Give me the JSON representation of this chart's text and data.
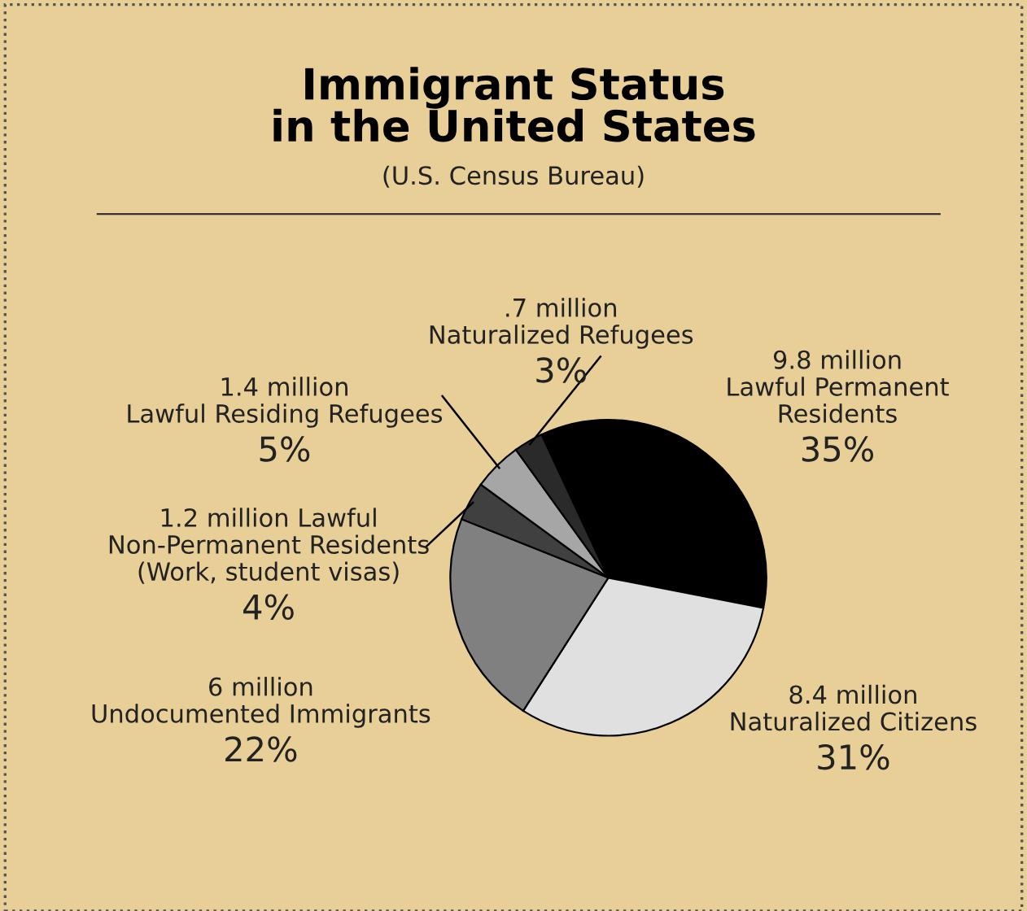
{
  "chart_data": {
    "type": "pie",
    "title": "Immigrant Status\nin the United States",
    "subtitle": "(U.S. Census Bureau)",
    "categories": [
      "9.8 million\nLawful Permanent\nResidents",
      "8.4 million\nNaturalized Citizens",
      "6 million\nUndocumented Immigrants",
      "1.2 million Lawful\nNon-Permanent Residents\n(Work, student visas)",
      "1.4 million\nLawful Residing Refugees",
      ".7 million\nNaturalized Refugees"
    ],
    "values": [
      35,
      31,
      22,
      4,
      5,
      3
    ],
    "value_labels": [
      "35%",
      "31%",
      "22%",
      "4%",
      "5%",
      "3%"
    ],
    "colors": [
      "#000000",
      "#e0e0e0",
      "#808080",
      "#404040",
      "#a6a6a6",
      "#2a2a2a"
    ],
    "legend": false
  }
}
